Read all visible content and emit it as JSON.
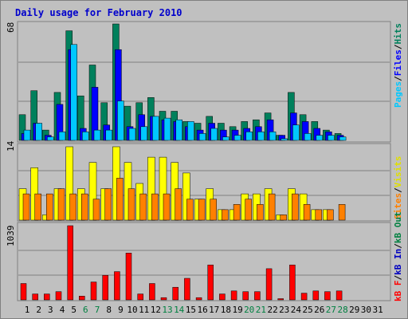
{
  "title": "Daily usage for February 2010",
  "colors": {
    "background": "#c0c0c0",
    "frame_border": "#7a7a7a",
    "title": "#0000cc",
    "hits": "#00805c",
    "files": "#0000ff",
    "pages": "#00c8ff",
    "visits": "#ffff00",
    "sites": "#ff8000",
    "kb_in": "#0000c0",
    "kb_out": "#008040",
    "kb": "#ff0000",
    "weekday_label": "#000080",
    "weekend_label": "#008040",
    "gridline": "#808080"
  },
  "legend": {
    "top": {
      "pages": "Pages",
      "files": "Files",
      "hits": "Hits",
      "sep": "/"
    },
    "middle": {
      "sites": "Sites",
      "visits": "Visits",
      "sep": "/"
    },
    "bottom": {
      "kb_f": "kB F",
      "kb_in": "kB In",
      "kb_out": "kB Out",
      "sep": "/"
    }
  },
  "chart_data": [
    {
      "type": "bar",
      "panel": "top",
      "ymax_label": "68",
      "ylim": [
        0,
        68
      ],
      "categories": [
        "1",
        "2",
        "3",
        "4",
        "5",
        "6",
        "7",
        "8",
        "9",
        "10",
        "11",
        "12",
        "13",
        "14",
        "15",
        "16",
        "17",
        "18",
        "19",
        "20",
        "21",
        "22",
        "23",
        "24",
        "25",
        "26",
        "27",
        "28",
        "29",
        "30",
        "31"
      ],
      "series": [
        {
          "name": "Hits",
          "values": [
            15,
            29,
            6,
            28,
            64,
            26,
            44,
            22,
            68,
            20,
            22,
            25,
            17,
            17,
            11,
            10,
            14,
            10,
            8,
            11,
            12,
            16,
            3,
            28,
            15,
            11,
            6,
            4,
            0,
            0,
            0
          ]
        },
        {
          "name": "Files",
          "values": [
            4,
            10,
            3,
            21,
            53,
            7,
            31,
            9,
            53,
            8,
            15,
            14,
            12,
            11,
            8,
            6,
            10,
            6,
            6,
            7,
            8,
            12,
            3,
            16,
            11,
            7,
            5,
            3,
            0,
            0,
            0
          ]
        },
        {
          "name": "Pages",
          "values": [
            6,
            10,
            2,
            5,
            56,
            5,
            6,
            6,
            23,
            7,
            8,
            14,
            13,
            12,
            11,
            4,
            7,
            2,
            3,
            5,
            5,
            5,
            1,
            9,
            4,
            3,
            3,
            2,
            0,
            0,
            0
          ]
        }
      ]
    },
    {
      "type": "bar",
      "panel": "middle",
      "ymax_label": "14",
      "ylim": [
        0,
        14
      ],
      "categories": [
        "1",
        "2",
        "3",
        "4",
        "5",
        "6",
        "7",
        "8",
        "9",
        "10",
        "11",
        "12",
        "13",
        "14",
        "15",
        "16",
        "17",
        "18",
        "19",
        "20",
        "21",
        "22",
        "23",
        "24",
        "25",
        "26",
        "27",
        "28",
        "29",
        "30",
        "31"
      ],
      "series": [
        {
          "name": "Visits",
          "values": [
            6,
            10,
            1,
            6,
            14,
            6,
            11,
            6,
            14,
            11,
            7,
            12,
            12,
            11,
            9,
            4,
            6,
            2,
            2,
            5,
            5,
            6,
            1,
            6,
            5,
            2,
            2,
            0,
            0,
            0,
            0
          ]
        },
        {
          "name": "Sites",
          "values": [
            5,
            5,
            5,
            6,
            5,
            5,
            4,
            6,
            8,
            6,
            5,
            5,
            5,
            6,
            4,
            4,
            4,
            2,
            3,
            4,
            3,
            5,
            1,
            5,
            3,
            2,
            2,
            3,
            0,
            0,
            0
          ]
        }
      ]
    },
    {
      "type": "bar",
      "panel": "bottom",
      "ymax_label": "1039",
      "ylim": [
        0,
        1039
      ],
      "categories": [
        "1",
        "2",
        "3",
        "4",
        "5",
        "6",
        "7",
        "8",
        "9",
        "10",
        "11",
        "12",
        "13",
        "14",
        "15",
        "16",
        "17",
        "18",
        "19",
        "20",
        "21",
        "22",
        "23",
        "24",
        "25",
        "26",
        "27",
        "28",
        "29",
        "30",
        "31"
      ],
      "series": [
        {
          "name": "kB F",
          "values": [
            229,
            83,
            83,
            115,
            1039,
            52,
            250,
            344,
            396,
            656,
            83,
            229,
            31,
            177,
            302,
            31,
            489,
            83,
            125,
            115,
            115,
            437,
            10,
            489,
            94,
            125,
            115,
            125,
            0,
            0,
            0
          ]
        }
      ]
    }
  ],
  "weekend_days": [
    6,
    7,
    13,
    14,
    20,
    21,
    27,
    28
  ]
}
